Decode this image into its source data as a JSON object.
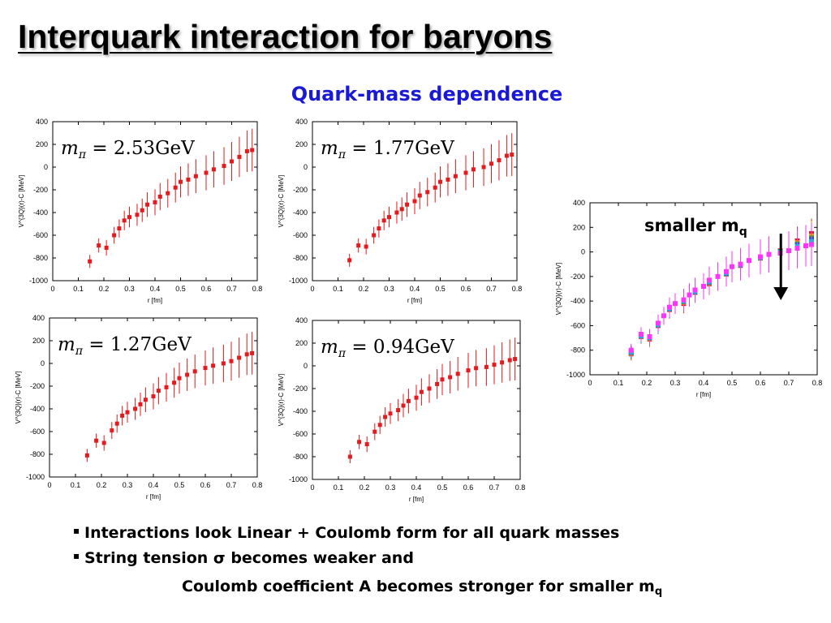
{
  "slide": {
    "title": "Interquark interaction for baryons",
    "subtitle": "Quark-mass dependence"
  },
  "bullets": {
    "marker": "▪",
    "line1": "Interactions look Linear + Coulomb form for all quark masses",
    "line2": "String tension σ becomes weaker and",
    "line3_main": "Coulomb coefficient A becomes stronger for smaller m",
    "line3_sub": "q"
  },
  "annotation": {
    "text_main": "smaller m",
    "text_sub": "q"
  },
  "colors": {
    "title": "#000000",
    "subtitle": "#1a1ad6",
    "data_points": "#e41a1c",
    "combined_top": "#ff33ff",
    "arrow": "#000000"
  },
  "chart_data": [
    {
      "type": "scatter",
      "label_prefix": "m",
      "label_sub": "π",
      "label_value": " = 2.53GeV",
      "xlabel": "r [fm]",
      "ylabel": "V^{3Q}(r)-C [MeV]",
      "xlim": [
        0,
        0.8
      ],
      "ylim": [
        -1000,
        400
      ],
      "xticks": [
        "0",
        "0.1",
        "0.2",
        "0.3",
        "0.4",
        "0.5",
        "0.6",
        "0.7",
        "0.8"
      ],
      "yticks": [
        "400",
        "200",
        "0",
        "-200",
        "-400",
        "-600",
        "-800",
        "-1000"
      ],
      "series": [
        {
          "color": "#e41a1c",
          "x": [
            0.145,
            0.18,
            0.21,
            0.24,
            0.26,
            0.28,
            0.3,
            0.33,
            0.35,
            0.37,
            0.4,
            0.42,
            0.45,
            0.48,
            0.5,
            0.53,
            0.56,
            0.6,
            0.63,
            0.67,
            0.7,
            0.73,
            0.76,
            0.78
          ],
          "y": [
            -830,
            -690,
            -710,
            -600,
            -540,
            -470,
            -440,
            -420,
            -380,
            -330,
            -310,
            -260,
            -230,
            -180,
            -130,
            -110,
            -80,
            -50,
            -20,
            10,
            50,
            90,
            140,
            150
          ]
        }
      ]
    },
    {
      "type": "scatter",
      "label_prefix": "m",
      "label_sub": "π",
      "label_value": " = 1.77GeV",
      "xlabel": "r [fm]",
      "ylabel": "V^{3Q}(r)-C [MeV]",
      "xlim": [
        0,
        0.8
      ],
      "ylim": [
        -1000,
        400
      ],
      "xticks": [
        "0",
        "0.1",
        "0.2",
        "0.3",
        "0.4",
        "0.5",
        "0.6",
        "0.7",
        "0.8"
      ],
      "yticks": [
        "400",
        "200",
        "0",
        "-200",
        "-400",
        "-600",
        "-800",
        "-1000"
      ],
      "series": [
        {
          "color": "#e41a1c",
          "x": [
            0.145,
            0.18,
            0.21,
            0.24,
            0.26,
            0.28,
            0.3,
            0.33,
            0.35,
            0.37,
            0.4,
            0.42,
            0.45,
            0.48,
            0.5,
            0.53,
            0.56,
            0.6,
            0.63,
            0.67,
            0.7,
            0.73,
            0.76,
            0.78
          ],
          "y": [
            -820,
            -690,
            -700,
            -600,
            -540,
            -470,
            -440,
            -400,
            -370,
            -330,
            -300,
            -250,
            -220,
            -180,
            -130,
            -110,
            -80,
            -50,
            -20,
            0,
            30,
            60,
            100,
            110
          ]
        }
      ]
    },
    {
      "type": "scatter",
      "label_prefix": "m",
      "label_sub": "π",
      "label_value": " = 1.27GeV",
      "xlabel": "r [fm]",
      "ylabel": "V^{3Q}(r)-C [MeV]",
      "xlim": [
        0,
        0.8
      ],
      "ylim": [
        -1000,
        400
      ],
      "xticks": [
        "0",
        "0.1",
        "0.2",
        "0.3",
        "0.4",
        "0.5",
        "0.6",
        "0.7",
        "0.8"
      ],
      "yticks": [
        "400",
        "200",
        "0",
        "-200",
        "-400",
        "-600",
        "-800",
        "-1000"
      ],
      "series": [
        {
          "color": "#e41a1c",
          "x": [
            0.145,
            0.18,
            0.21,
            0.24,
            0.26,
            0.28,
            0.3,
            0.33,
            0.35,
            0.37,
            0.4,
            0.42,
            0.45,
            0.48,
            0.5,
            0.53,
            0.56,
            0.6,
            0.63,
            0.67,
            0.7,
            0.73,
            0.76,
            0.78
          ],
          "y": [
            -810,
            -680,
            -700,
            -590,
            -530,
            -460,
            -430,
            -400,
            -360,
            -320,
            -290,
            -240,
            -210,
            -170,
            -130,
            -100,
            -70,
            -40,
            -20,
            0,
            20,
            50,
            80,
            90
          ]
        }
      ]
    },
    {
      "type": "scatter",
      "label_prefix": "m",
      "label_sub": "π",
      "label_value": " = 0.94GeV",
      "xlabel": "r [fm]",
      "ylabel": "V^{3Q}(r)-C [MeV]",
      "xlim": [
        0,
        0.8
      ],
      "ylim": [
        -1000,
        400
      ],
      "xticks": [
        "0",
        "0.1",
        "0.2",
        "0.3",
        "0.4",
        "0.5",
        "0.6",
        "0.7",
        "0.8"
      ],
      "yticks": [
        "400",
        "200",
        "0",
        "-200",
        "-400",
        "-600",
        "-800",
        "-1000"
      ],
      "series": [
        {
          "color": "#e41a1c",
          "x": [
            0.145,
            0.18,
            0.21,
            0.24,
            0.26,
            0.28,
            0.3,
            0.33,
            0.35,
            0.37,
            0.4,
            0.42,
            0.45,
            0.48,
            0.5,
            0.53,
            0.56,
            0.6,
            0.63,
            0.67,
            0.7,
            0.73,
            0.76,
            0.78
          ],
          "y": [
            -800,
            -670,
            -690,
            -580,
            -520,
            -450,
            -420,
            -390,
            -350,
            -310,
            -280,
            -230,
            -200,
            -160,
            -120,
            -100,
            -70,
            -40,
            -20,
            -10,
            10,
            30,
            50,
            60
          ]
        }
      ]
    },
    {
      "type": "scatter",
      "label_prefix": "",
      "label_sub": "",
      "label_value": "",
      "xlabel": "r [fm]",
      "ylabel": "V^{3Q}(r)-C [MeV]",
      "xlim": [
        0,
        0.8
      ],
      "ylim": [
        -1000,
        400
      ],
      "xticks": [
        "0",
        "0.1",
        "0.2",
        "0.3",
        "0.4",
        "0.5",
        "0.6",
        "0.7",
        "0.8"
      ],
      "yticks": [
        "400",
        "200",
        "0",
        "-200",
        "-400",
        "-600",
        "-800",
        "-1000"
      ],
      "series": [
        {
          "color": "#e41a1c",
          "x": [
            0.145,
            0.18,
            0.21,
            0.24,
            0.28,
            0.33,
            0.37,
            0.42,
            0.48,
            0.53,
            0.6,
            0.67,
            0.73,
            0.78
          ],
          "y": [
            -830,
            -690,
            -710,
            -600,
            -470,
            -420,
            -330,
            -260,
            -180,
            -110,
            -50,
            10,
            90,
            150
          ]
        },
        {
          "color": "#ff9900",
          "x": [
            0.145,
            0.18,
            0.21,
            0.24,
            0.28,
            0.33,
            0.37,
            0.42,
            0.48,
            0.53,
            0.6,
            0.67,
            0.73,
            0.78
          ],
          "y": [
            -825,
            -688,
            -705,
            -598,
            -468,
            -410,
            -330,
            -255,
            -180,
            -110,
            -50,
            5,
            75,
            130
          ]
        },
        {
          "color": "#2ca02c",
          "x": [
            0.145,
            0.18,
            0.21,
            0.24,
            0.28,
            0.33,
            0.37,
            0.42,
            0.48,
            0.53,
            0.6,
            0.67,
            0.73,
            0.78
          ],
          "y": [
            -820,
            -686,
            -700,
            -596,
            -465,
            -405,
            -328,
            -250,
            -178,
            -108,
            -48,
            3,
            65,
            115
          ]
        },
        {
          "color": "#1f4fd8",
          "x": [
            0.145,
            0.18,
            0.21,
            0.24,
            0.28,
            0.33,
            0.37,
            0.42,
            0.48,
            0.53,
            0.6,
            0.67,
            0.73,
            0.78
          ],
          "y": [
            -815,
            -684,
            -698,
            -594,
            -462,
            -400,
            -325,
            -245,
            -175,
            -105,
            -45,
            0,
            55,
            100
          ]
        },
        {
          "color": "#00c8d8",
          "x": [
            0.145,
            0.18,
            0.21,
            0.24,
            0.28,
            0.33,
            0.37,
            0.42,
            0.48,
            0.53,
            0.6,
            0.67,
            0.73,
            0.78
          ],
          "y": [
            -812,
            -682,
            -695,
            -590,
            -458,
            -398,
            -320,
            -240,
            -170,
            -102,
            -43,
            -5,
            45,
            85
          ]
        },
        {
          "color": "#ff33ff",
          "x": [
            0.145,
            0.18,
            0.21,
            0.24,
            0.26,
            0.28,
            0.3,
            0.33,
            0.35,
            0.37,
            0.4,
            0.42,
            0.45,
            0.48,
            0.5,
            0.53,
            0.56,
            0.6,
            0.63,
            0.67,
            0.7,
            0.73,
            0.76,
            0.78
          ],
          "y": [
            -800,
            -670,
            -690,
            -580,
            -520,
            -450,
            -420,
            -390,
            -350,
            -310,
            -280,
            -230,
            -200,
            -160,
            -120,
            -100,
            -70,
            -40,
            -20,
            -10,
            10,
            30,
            50,
            60
          ]
        }
      ]
    }
  ]
}
